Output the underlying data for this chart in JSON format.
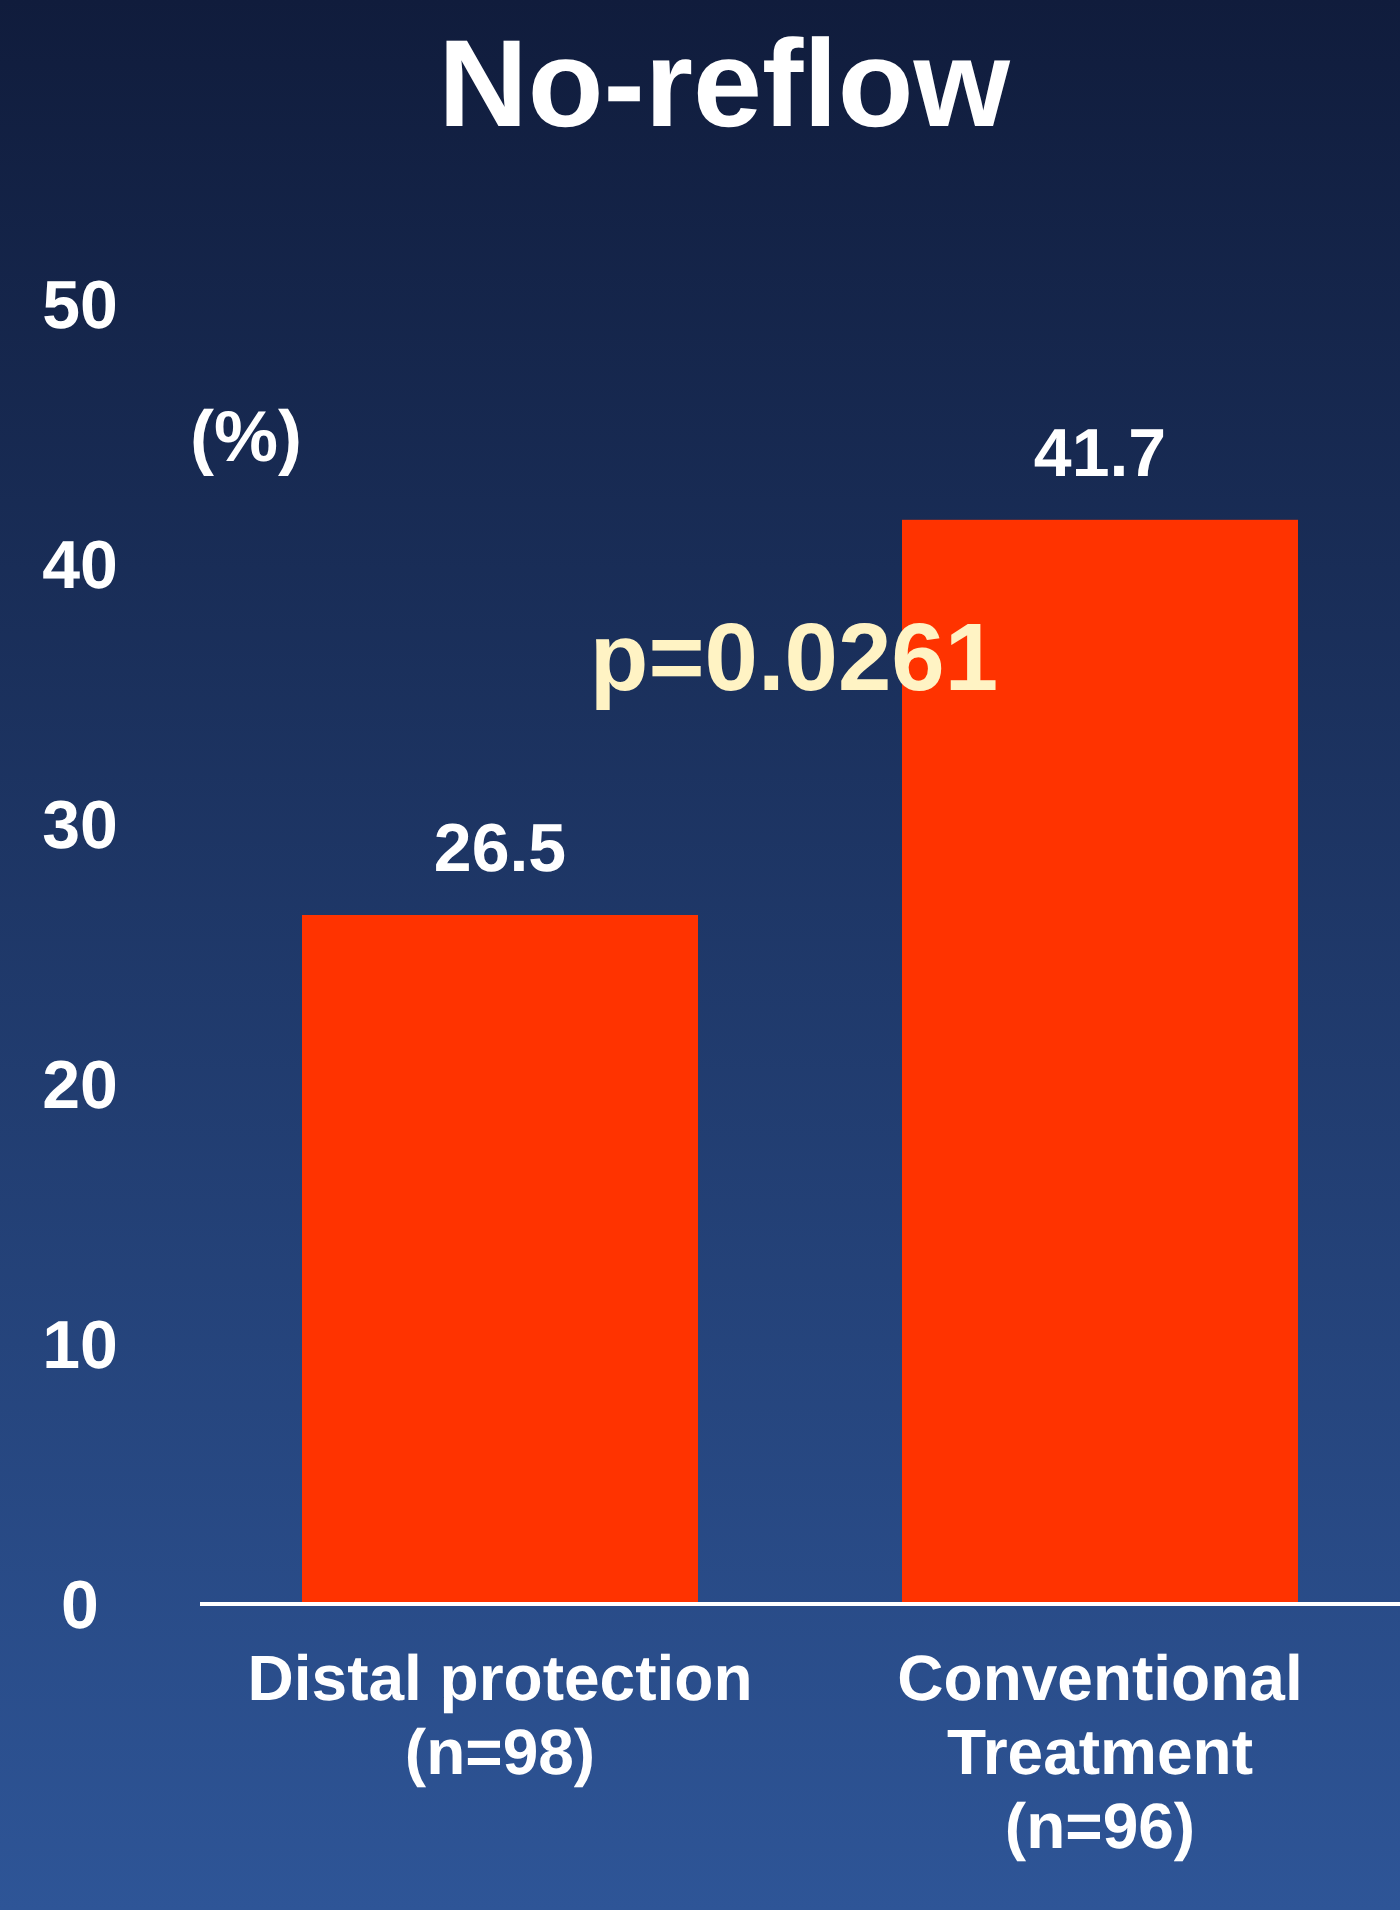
{
  "chart_data": {
    "type": "bar",
    "title": "No-reflow",
    "ylabel": "(%)",
    "categories": [
      "Distal protection\n(n=98)",
      "Conventional\nTreatment\n(n=96)"
    ],
    "values": [
      26.5,
      41.7
    ],
    "color": "#ff3300",
    "ylim": [
      0,
      50
    ],
    "yticks": [
      0,
      10,
      20,
      30,
      40,
      50
    ],
    "grid": false,
    "data_labels": true,
    "annotations": [
      "p=0.0261"
    ]
  }
}
